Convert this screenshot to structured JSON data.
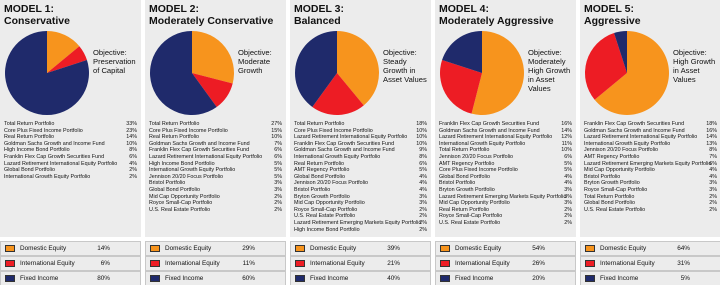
{
  "models": [
    {
      "title": "MODEL 1:",
      "subtitle": "Conservative",
      "objective": "Objective: Preservation of Capital",
      "holdings": [
        [
          "Total Return Portfolio",
          "33%"
        ],
        [
          "Core Plus Fixed Income Portfolio",
          "23%"
        ],
        [
          "Real Return Portfolio",
          "14%"
        ],
        [
          "Goldman Sachs Growth and Income Fund",
          "10%"
        ],
        [
          "High Income Bond Portfolio",
          "8%"
        ],
        [
          "Franklin Flex Cap Growth Securities Fund",
          "6%"
        ],
        [
          "Lazard Retirement International Equity Portfolio",
          "4%"
        ],
        [
          "Global Bond Portfolio",
          "2%"
        ],
        [
          "International Growth Equity Portfolio",
          "2%"
        ]
      ],
      "allocation": [
        {
          "name": "Domestic Equity",
          "color": "#f7941d",
          "value": 14,
          "label": "14%"
        },
        {
          "name": "International Equity",
          "color": "#ed1c24",
          "value": 6,
          "label": "6%"
        },
        {
          "name": "Fixed Income",
          "color": "#1f2a6b",
          "value": 80,
          "label": "80%"
        }
      ]
    },
    {
      "title": "MODEL 2:",
      "subtitle": "Moderately Conservative",
      "objective": "Objective: Moderate Growth",
      "holdings": [
        [
          "Total Return Portfolio",
          "27%"
        ],
        [
          "Core Plus Fixed Income Portfolio",
          "15%"
        ],
        [
          "Real Return Portfolio",
          "10%"
        ],
        [
          "Goldman Sachs Growth and Income Fund",
          "7%"
        ],
        [
          "Franklin Flex Cap Growth Securities Fund",
          "6%"
        ],
        [
          "Lazard Retirement International Equity Portfolio",
          "6%"
        ],
        [
          "High Income Bond Portfolio",
          "5%"
        ],
        [
          "International Growth Equity Portfolio",
          "5%"
        ],
        [
          "Jennison 20/20 Focus Portfolio",
          "5%"
        ],
        [
          "Bristol Portfolio",
          "3%"
        ],
        [
          "Global Bond Portfolio",
          "3%"
        ],
        [
          "Mid Cap Opportunity Portfolio",
          "2%"
        ],
        [
          "Royce Small-Cap Portfolio",
          "2%"
        ],
        [
          "U.S. Real Estate Portfolio",
          "2%"
        ]
      ],
      "allocation": [
        {
          "name": "Domestic Equity",
          "color": "#f7941d",
          "value": 29,
          "label": "29%"
        },
        {
          "name": "International Equity",
          "color": "#ed1c24",
          "value": 11,
          "label": "11%"
        },
        {
          "name": "Fixed Income",
          "color": "#1f2a6b",
          "value": 60,
          "label": "60%"
        }
      ]
    },
    {
      "title": "MODEL 3:",
      "subtitle": "Balanced",
      "objective": "Objective: Steady Growth in Asset Values",
      "holdings": [
        [
          "Total Return Portfolio",
          "18%"
        ],
        [
          "Core Plus Fixed Income Portfolio",
          "10%"
        ],
        [
          "Lazard Retirement International Equity Portfolio",
          "10%"
        ],
        [
          "Franklin Flex Cap Growth Securities Fund",
          "10%"
        ],
        [
          "Goldman Sachs Growth and Income Fund",
          "9%"
        ],
        [
          "International Growth Equity Portfolio",
          "8%"
        ],
        [
          "Real Return Portfolio",
          "6%"
        ],
        [
          "AMT Regency Portfolio",
          "5%"
        ],
        [
          "Global Bond Portfolio",
          "4%"
        ],
        [
          "Jennison 20/20 Focus Portfolio",
          "4%"
        ],
        [
          "Bristol Portfolio",
          "4%"
        ],
        [
          "Bryton Growth Portfolio",
          "3%"
        ],
        [
          "Mid Cap Opportunity Portfolio",
          "3%"
        ],
        [
          "Royce Small-Cap Portfolio",
          "2%"
        ],
        [
          "U.S. Real Estate Portfolio",
          "2%"
        ],
        [
          "Lazard Retirement Emerging Markets Equity Portfolio",
          "2%"
        ],
        [
          "High Income Bond Portfolio",
          "2%"
        ]
      ],
      "allocation": [
        {
          "name": "Domestic Equity",
          "color": "#f7941d",
          "value": 39,
          "label": "39%"
        },
        {
          "name": "International Equity",
          "color": "#ed1c24",
          "value": 21,
          "label": "21%"
        },
        {
          "name": "Fixed Income",
          "color": "#1f2a6b",
          "value": 40,
          "label": "40%"
        }
      ]
    },
    {
      "title": "MODEL 4:",
      "subtitle": "Moderately Aggressive",
      "objective": "Objective: Moderately High Growth in Asset Values",
      "holdings": [
        [
          "Franklin Flex Cap Growth Securities Fund",
          "16%"
        ],
        [
          "Goldman Sachs Growth and Income Fund",
          "14%"
        ],
        [
          "Lazard Retirement International Equity Portfolio",
          "12%"
        ],
        [
          "International Growth Equity Portfolio",
          "11%"
        ],
        [
          "Total Return Portfolio",
          "10%"
        ],
        [
          "Jennison 20/20 Focus Portfolio",
          "6%"
        ],
        [
          "AMT Regency Portfolio",
          "5%"
        ],
        [
          "Core Plus Fixed Income Portfolio",
          "5%"
        ],
        [
          "Global Bond Portfolio",
          "4%"
        ],
        [
          "Bristol Portfolio",
          "4%"
        ],
        [
          "Bryton Growth Portfolio",
          "3%"
        ],
        [
          "Lazard Retirement Emerging Markets Equity Portfolio",
          "3%"
        ],
        [
          "Mid Cap Opportunity Portfolio",
          "3%"
        ],
        [
          "Real Return Portfolio",
          "2%"
        ],
        [
          "Royce Small-Cap Portfolio",
          "2%"
        ],
        [
          "U.S. Real Estate Portfolio",
          "2%"
        ]
      ],
      "allocation": [
        {
          "name": "Domestic Equity",
          "color": "#f7941d",
          "value": 54,
          "label": "54%"
        },
        {
          "name": "International Equity",
          "color": "#ed1c24",
          "value": 26,
          "label": "26%"
        },
        {
          "name": "Fixed Income",
          "color": "#1f2a6b",
          "value": 20,
          "label": "20%"
        }
      ]
    },
    {
      "title": "MODEL 5:",
      "subtitle": "Aggressive",
      "objective": "Objective: High Growth in Asset Values",
      "holdings": [
        [
          "Franklin Flex Cap Growth Securities Fund",
          "18%"
        ],
        [
          "Goldman Sachs Growth and Income Fund",
          "16%"
        ],
        [
          "Lazard Retirement International Equity Portfolio",
          "14%"
        ],
        [
          "International Growth Equity Portfolio",
          "13%"
        ],
        [
          "Jennison 20/20 Focus Portfolio",
          "8%"
        ],
        [
          "AMT Regency Portfolio",
          "7%"
        ],
        [
          "Lazard Retirement Emerging Markets Equity Portfolio",
          "6%"
        ],
        [
          "Mid Cap Opportunity Portfolio",
          "4%"
        ],
        [
          "Bristol Portfolio",
          "4%"
        ],
        [
          "Bryton Growth Portfolio",
          "3%"
        ],
        [
          "Royce Small-Cap Portfolio",
          "3%"
        ],
        [
          "Total Return Portfolio",
          "2%"
        ],
        [
          "Global Bond Portfolio",
          "2%"
        ],
        [
          "U.S. Real Estate Portfolio",
          "2%"
        ]
      ],
      "allocation": [
        {
          "name": "Domestic Equity",
          "color": "#f7941d",
          "value": 64,
          "label": "64%"
        },
        {
          "name": "International Equity",
          "color": "#ed1c24",
          "value": 31,
          "label": "31%"
        },
        {
          "name": "Fixed Income",
          "color": "#1f2a6b",
          "value": 5,
          "label": "5%"
        }
      ]
    }
  ]
}
